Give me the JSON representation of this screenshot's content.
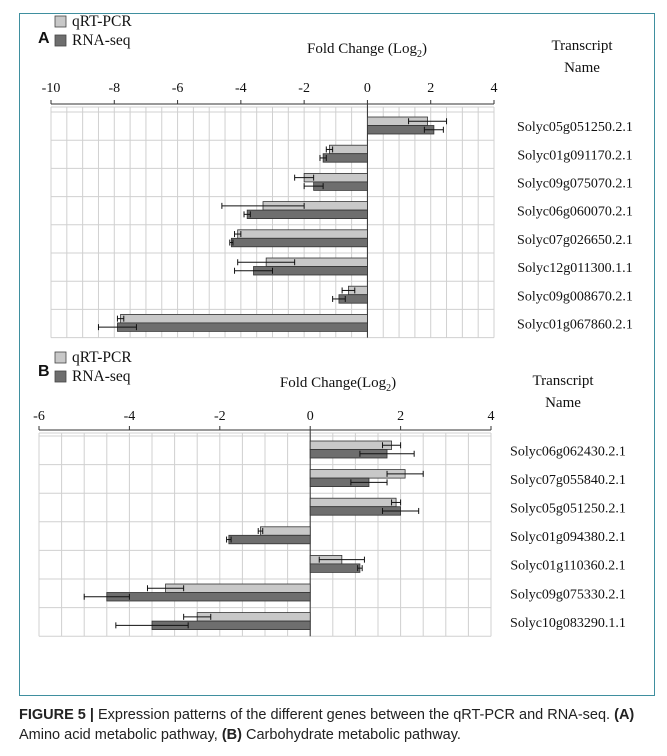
{
  "caption": {
    "figure_label": "FIGURE 5 |",
    "text_1": " Expression patterns of the different genes between the qRT-PCR and RNA-seq. ",
    "label_a": "(A)",
    "text_2": " Amino acid metabolic pathway, ",
    "label_b": "(B)",
    "text_3": " Carbohydrate metabolic pathway."
  },
  "colors": {
    "qrt": "#c8c8c8",
    "rna": "#6e6e6e",
    "border": "#3f8f9f"
  },
  "chart_data": [
    {
      "type": "bar",
      "orientation": "horizontal",
      "panel": "A",
      "title": "Fold Change (Log₂)",
      "category_header": "Transcript\nName",
      "xlim": [
        -10,
        4
      ],
      "xticks": [
        "-10",
        "-8",
        "-6",
        "-4",
        "-2",
        "0",
        "2",
        "4"
      ],
      "grid": true,
      "legend": "top-left",
      "categories": [
        "Solyc05g051250.2.1",
        "Solyc01g091170.2.1",
        "Solyc09g075070.2.1",
        "Solyc06g060070.2.1",
        "Solyc07g026650.2.1",
        "Solyc12g011300.1.1",
        "Solyc09g008670.2.1",
        "Solyc01g067860.2.1"
      ],
      "series": [
        {
          "name": "qRT-PCR",
          "values": [
            1.9,
            -1.2,
            -2.0,
            -3.3,
            -4.1,
            -3.2,
            -0.6,
            -7.8
          ],
          "errors": [
            0.6,
            0.1,
            0.3,
            1.3,
            0.1,
            0.9,
            0.2,
            0.1
          ]
        },
        {
          "name": "RNA-seq",
          "values": [
            2.1,
            -1.4,
            -1.7,
            -3.8,
            -4.3,
            -3.6,
            -0.9,
            -7.9
          ],
          "errors": [
            0.3,
            0.1,
            0.3,
            0.1,
            0.05,
            0.6,
            0.2,
            0.6
          ]
        }
      ]
    },
    {
      "type": "bar",
      "orientation": "horizontal",
      "panel": "B",
      "title": "Fold Change(Log₂)",
      "category_header": "Transcript\nName",
      "xlim": [
        -6,
        4
      ],
      "xticks": [
        "-6",
        "-4",
        "-2",
        "0",
        "2",
        "4"
      ],
      "grid": true,
      "legend": "top-left",
      "categories": [
        "Solyc06g062430.2.1",
        "Solyc07g055840.2.1",
        "Solyc05g051250.2.1",
        "Solyc01g094380.2.1",
        "Solyc01g110360.2.1",
        "Solyc09g075330.2.1",
        "Solyc10g083290.1.1"
      ],
      "series": [
        {
          "name": "qRT-PCR",
          "values": [
            1.8,
            2.1,
            1.9,
            -1.1,
            0.7,
            -3.2,
            -2.5
          ],
          "errors": [
            0.2,
            0.4,
            0.1,
            0.05,
            0.5,
            0.4,
            0.3
          ]
        },
        {
          "name": "RNA-seq",
          "values": [
            1.7,
            1.3,
            2.0,
            -1.8,
            1.1,
            -4.5,
            -3.5
          ],
          "errors": [
            0.6,
            0.4,
            0.4,
            0.05,
            0.05,
            0.5,
            0.8
          ]
        }
      ]
    }
  ]
}
